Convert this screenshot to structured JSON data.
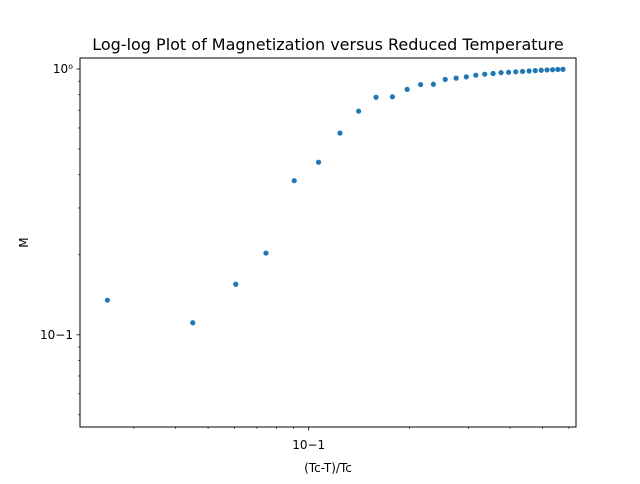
{
  "chart_data": {
    "type": "scatter",
    "title": "Log-log Plot of Magnetization versus Reduced Temperature",
    "xlabel": "(Tc-T)/Tc",
    "ylabel": "M",
    "xscale": "log",
    "yscale": "log",
    "xlim": [
      0.0207,
      0.63
    ],
    "ylim": [
      0.045,
      1.1
    ],
    "x_tick_labels": [
      {
        "value": 0.1,
        "label": "10−1"
      }
    ],
    "y_tick_labels": [
      {
        "value": 0.1,
        "label": "10−1"
      },
      {
        "value": 1.0,
        "label": "10⁰"
      }
    ],
    "marker_color": "#1f77b4",
    "grid": false,
    "points": [
      {
        "x": 0.025,
        "y": 0.135
      },
      {
        "x": 0.045,
        "y": 0.111
      },
      {
        "x": 0.0605,
        "y": 0.155
      },
      {
        "x": 0.0745,
        "y": 0.203
      },
      {
        "x": 0.0905,
        "y": 0.38
      },
      {
        "x": 0.107,
        "y": 0.446
      },
      {
        "x": 0.124,
        "y": 0.574
      },
      {
        "x": 0.141,
        "y": 0.694
      },
      {
        "x": 0.159,
        "y": 0.783
      },
      {
        "x": 0.178,
        "y": 0.786
      },
      {
        "x": 0.197,
        "y": 0.838
      },
      {
        "x": 0.216,
        "y": 0.874
      },
      {
        "x": 0.236,
        "y": 0.876
      },
      {
        "x": 0.256,
        "y": 0.914
      },
      {
        "x": 0.276,
        "y": 0.924
      },
      {
        "x": 0.296,
        "y": 0.934
      },
      {
        "x": 0.316,
        "y": 0.948
      },
      {
        "x": 0.336,
        "y": 0.956
      },
      {
        "x": 0.356,
        "y": 0.962
      },
      {
        "x": 0.376,
        "y": 0.969
      },
      {
        "x": 0.396,
        "y": 0.972
      },
      {
        "x": 0.416,
        "y": 0.976
      },
      {
        "x": 0.436,
        "y": 0.979
      },
      {
        "x": 0.456,
        "y": 0.983
      },
      {
        "x": 0.476,
        "y": 0.986
      },
      {
        "x": 0.496,
        "y": 0.989
      },
      {
        "x": 0.516,
        "y": 0.992
      },
      {
        "x": 0.536,
        "y": 0.994
      },
      {
        "x": 0.556,
        "y": 0.996
      },
      {
        "x": 0.576,
        "y": 0.998
      }
    ]
  }
}
